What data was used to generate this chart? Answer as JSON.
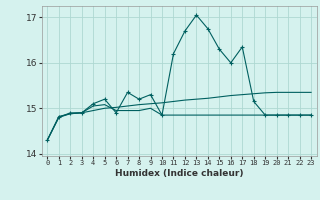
{
  "xlabel": "Humidex (Indice chaleur)",
  "bg_color": "#d5f2ee",
  "grid_color": "#aed8d2",
  "line_color": "#006060",
  "xlim": [
    -0.5,
    23.5
  ],
  "ylim": [
    13.95,
    17.25
  ],
  "yticks": [
    14,
    15,
    16,
    17
  ],
  "xticks": [
    0,
    1,
    2,
    3,
    4,
    5,
    6,
    7,
    8,
    9,
    10,
    11,
    12,
    13,
    14,
    15,
    16,
    17,
    18,
    19,
    20,
    21,
    22,
    23
  ],
  "series1": [
    14.3,
    14.8,
    14.9,
    14.9,
    15.1,
    15.2,
    14.9,
    15.35,
    15.2,
    15.3,
    14.85,
    16.2,
    16.7,
    17.05,
    16.75,
    16.3,
    16.0,
    16.35,
    15.15,
    14.85,
    14.85,
    14.85,
    14.85,
    14.85
  ],
  "series2": [
    14.3,
    14.8,
    14.88,
    14.9,
    15.05,
    15.08,
    14.95,
    14.95,
    14.95,
    15.0,
    14.85,
    14.85,
    14.85,
    14.85,
    14.85,
    14.85,
    14.85,
    14.85,
    14.85,
    14.85,
    14.85,
    14.85,
    14.85,
    14.85
  ],
  "series3": [
    14.3,
    14.82,
    14.88,
    14.9,
    14.95,
    15.0,
    15.02,
    15.05,
    15.08,
    15.1,
    15.12,
    15.15,
    15.18,
    15.2,
    15.22,
    15.25,
    15.28,
    15.3,
    15.32,
    15.34,
    15.35,
    15.35,
    15.35,
    15.35
  ]
}
